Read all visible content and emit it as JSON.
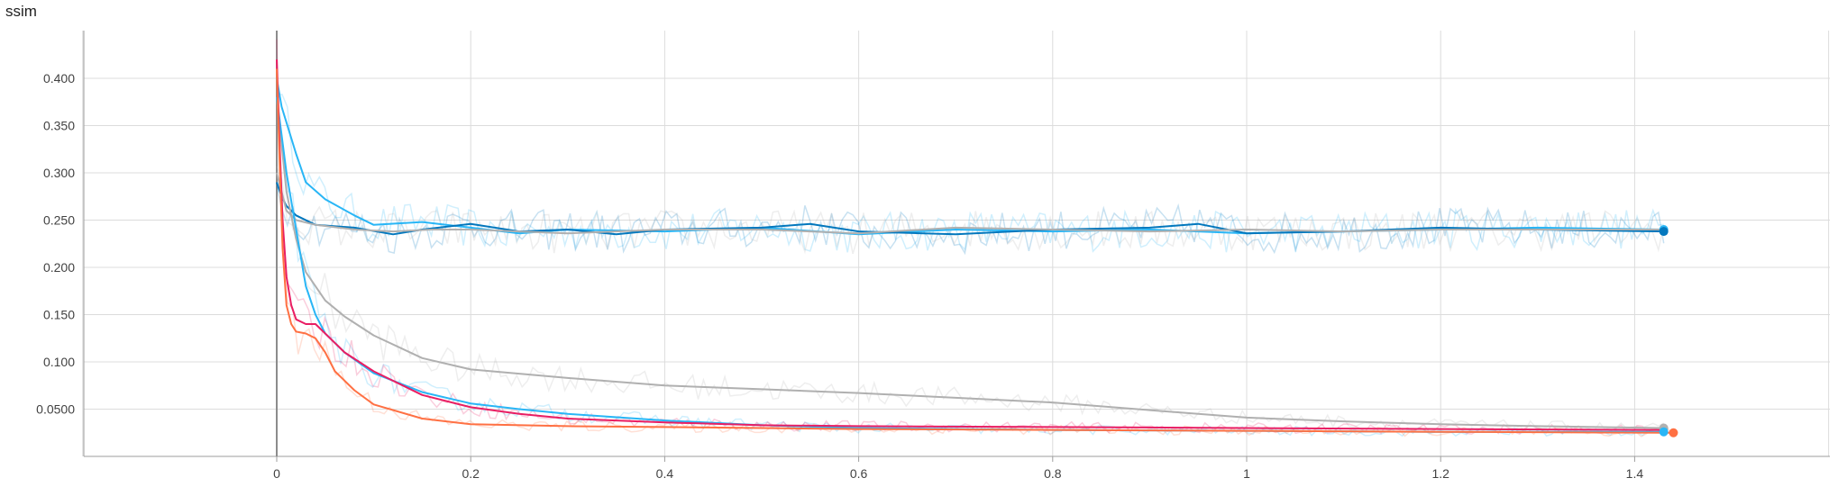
{
  "chart_data": {
    "type": "line",
    "title": "ssim",
    "xlabel": "",
    "ylabel": "",
    "xlim": [
      -0.2,
      1.6
    ],
    "ylim": [
      0.0,
      0.45
    ],
    "x_ticks": [
      0,
      0.2,
      0.4,
      0.6,
      0.8,
      1,
      1.2,
      1.4
    ],
    "x_tick_labels": [
      "0",
      "0.2",
      "0.4",
      "0.6",
      "0.8",
      "1",
      "1.2",
      "1.4"
    ],
    "y_ticks": [
      0.05,
      0.1,
      0.15,
      0.2,
      0.25,
      0.3,
      0.35,
      0.4
    ],
    "y_tick_labels": [
      "0.0500",
      "0.100",
      "0.150",
      "0.200",
      "0.250",
      "0.300",
      "0.350",
      "0.400"
    ],
    "grid": true,
    "legend": "none",
    "series": [
      {
        "color": "#29b6f6",
        "end_marker": true,
        "x": [
          0,
          0.005,
          0.02,
          0.03,
          0.05,
          0.08,
          0.1,
          0.15,
          0.2,
          0.25,
          0.3,
          0.4,
          0.5,
          0.6,
          0.7,
          0.8,
          0.9,
          1.0,
          1.1,
          1.2,
          1.3,
          1.43
        ],
        "y": [
          0.4,
          0.37,
          0.32,
          0.29,
          0.272,
          0.255,
          0.245,
          0.248,
          0.242,
          0.236,
          0.24,
          0.238,
          0.242,
          0.235,
          0.24,
          0.238,
          0.24,
          0.236,
          0.238,
          0.24,
          0.242,
          0.24
        ]
      },
      {
        "color": "#0277bd",
        "end_marker": true,
        "x": [
          0,
          0.005,
          0.01,
          0.02,
          0.04,
          0.08,
          0.12,
          0.15,
          0.2,
          0.25,
          0.3,
          0.35,
          0.4,
          0.5,
          0.55,
          0.6,
          0.7,
          0.8,
          0.9,
          0.95,
          1.0,
          1.1,
          1.2,
          1.3,
          1.43
        ],
        "y": [
          0.29,
          0.275,
          0.265,
          0.255,
          0.245,
          0.242,
          0.235,
          0.24,
          0.246,
          0.238,
          0.24,
          0.235,
          0.24,
          0.242,
          0.246,
          0.238,
          0.235,
          0.24,
          0.242,
          0.246,
          0.236,
          0.238,
          0.242,
          0.24,
          0.238
        ]
      },
      {
        "color": "#b0b0b0",
        "end_marker": false,
        "x": [
          0,
          0.01,
          0.02,
          0.04,
          0.08,
          0.12,
          0.16,
          0.2,
          0.3,
          0.4,
          0.5,
          0.6,
          0.7,
          0.8,
          0.9,
          1.0,
          1.1,
          1.2,
          1.3,
          1.43
        ],
        "y": [
          0.3,
          0.26,
          0.25,
          0.245,
          0.24,
          0.238,
          0.24,
          0.24,
          0.236,
          0.24,
          0.24,
          0.236,
          0.242,
          0.24,
          0.238,
          0.24,
          0.238,
          0.24,
          0.24,
          0.24
        ]
      },
      {
        "color": "#b0b0b0",
        "end_marker": true,
        "x": [
          0,
          0.005,
          0.01,
          0.02,
          0.03,
          0.05,
          0.07,
          0.1,
          0.15,
          0.2,
          0.3,
          0.4,
          0.5,
          0.6,
          0.7,
          0.8,
          0.9,
          1.0,
          1.1,
          1.2,
          1.3,
          1.43
        ],
        "y": [
          0.38,
          0.33,
          0.28,
          0.23,
          0.195,
          0.165,
          0.148,
          0.128,
          0.104,
          0.092,
          0.083,
          0.075,
          0.071,
          0.067,
          0.062,
          0.057,
          0.049,
          0.041,
          0.037,
          0.034,
          0.032,
          0.03
        ]
      },
      {
        "color": "#29b6f6",
        "end_marker": true,
        "x": [
          0,
          0.005,
          0.01,
          0.02,
          0.03,
          0.04,
          0.05,
          0.07,
          0.1,
          0.15,
          0.2,
          0.25,
          0.3,
          0.4,
          0.5,
          0.6,
          0.8,
          1.0,
          1.2,
          1.43
        ],
        "y": [
          0.38,
          0.34,
          0.3,
          0.24,
          0.18,
          0.15,
          0.13,
          0.11,
          0.088,
          0.068,
          0.056,
          0.05,
          0.045,
          0.038,
          0.033,
          0.03,
          0.028,
          0.027,
          0.026,
          0.026
        ]
      },
      {
        "color": "#e91e63",
        "end_marker": false,
        "x": [
          0,
          0.003,
          0.006,
          0.01,
          0.015,
          0.02,
          0.03,
          0.04,
          0.05,
          0.07,
          0.1,
          0.15,
          0.2,
          0.25,
          0.3,
          0.4,
          0.5,
          0.6,
          0.8,
          1.0,
          1.2,
          1.43
        ],
        "y": [
          0.42,
          0.33,
          0.25,
          0.19,
          0.16,
          0.145,
          0.14,
          0.14,
          0.13,
          0.11,
          0.09,
          0.065,
          0.052,
          0.045,
          0.04,
          0.036,
          0.033,
          0.032,
          0.031,
          0.03,
          0.029,
          0.028
        ]
      },
      {
        "color": "#ff7043",
        "end_marker": true,
        "x": [
          0,
          0.003,
          0.006,
          0.01,
          0.015,
          0.02,
          0.03,
          0.04,
          0.05,
          0.06,
          0.08,
          0.1,
          0.15,
          0.2,
          0.3,
          0.4,
          0.5,
          0.6,
          0.8,
          1.0,
          1.2,
          1.44
        ],
        "y": [
          0.41,
          0.31,
          0.22,
          0.16,
          0.14,
          0.132,
          0.13,
          0.125,
          0.11,
          0.09,
          0.07,
          0.055,
          0.04,
          0.034,
          0.032,
          0.031,
          0.03,
          0.029,
          0.028,
          0.027,
          0.026,
          0.025
        ]
      }
    ]
  }
}
